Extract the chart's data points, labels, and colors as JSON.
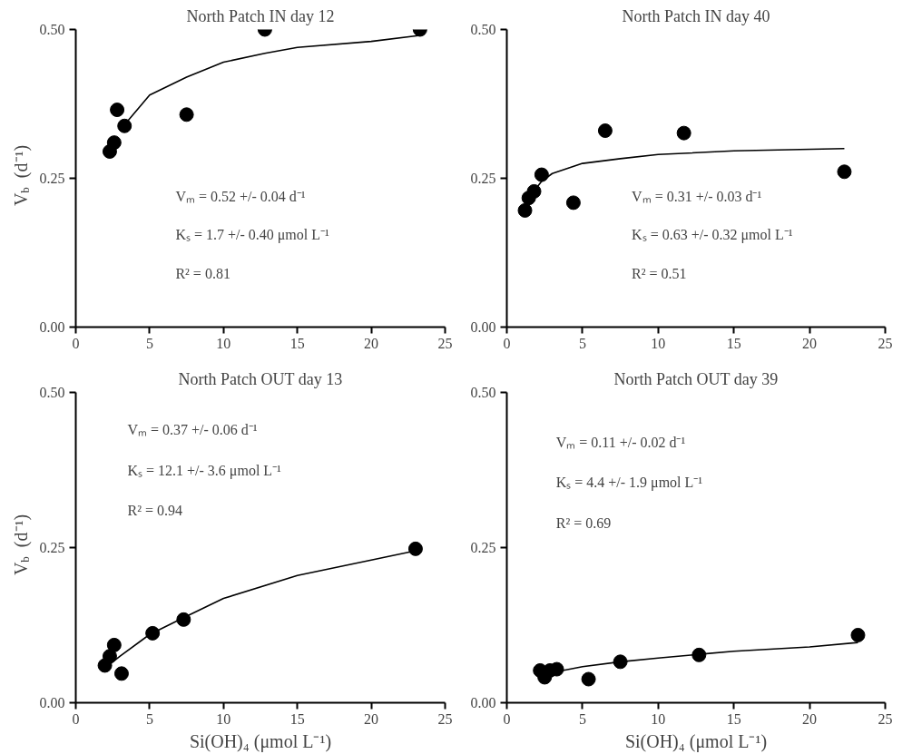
{
  "chart_data": [
    {
      "type": "scatter",
      "title": "North Patch IN day 12",
      "ylabel": "V$_{b}$ (d⁻¹)",
      "xlim": [
        0,
        25
      ],
      "ylim": [
        0,
        0.5
      ],
      "xticks": [
        0,
        5,
        10,
        15,
        20,
        25
      ],
      "yticks": [
        {
          "value": 0,
          "label": "0.00"
        },
        {
          "value": 0.25,
          "label": "0.25"
        },
        {
          "value": 0.5,
          "label": "0.50"
        }
      ],
      "grid": false,
      "annotations": [
        "Vₘ = 0.52 +/- 0.04  d⁻¹",
        "Kₛ = 1.7 +/- 0.40 μmol L⁻¹",
        "R² = 0.81"
      ],
      "series": [
        {
          "marker": "circle",
          "color": "#000000",
          "x": [
            2.3,
            2.6,
            2.8,
            3.3,
            7.5,
            12.8,
            23.3
          ],
          "values": [
            0.295,
            0.31,
            0.365,
            0.338,
            0.357,
            0.5,
            0.5
          ]
        },
        {
          "type": "line",
          "marker": "none",
          "color": "#000000",
          "x": [
            3.3,
            5,
            7.5,
            10,
            12.8,
            15,
            20,
            23.3
          ],
          "values": [
            0.34,
            0.39,
            0.42,
            0.445,
            0.46,
            0.47,
            0.48,
            0.49
          ]
        }
      ]
    },
    {
      "type": "scatter",
      "title": "North Patch IN day 40",
      "xlim": [
        0,
        25
      ],
      "ylim": [
        0,
        0.5
      ],
      "xticks": [
        0,
        5,
        10,
        15,
        20,
        25
      ],
      "yticks": [
        {
          "value": 0,
          "label": "0.00"
        },
        {
          "value": 0.25,
          "label": "0.25"
        },
        {
          "value": 0.5,
          "label": "0.50"
        }
      ],
      "grid": false,
      "annotations": [
        "Vₘ = 0.31 +/- 0.03 d⁻¹",
        "Kₛ = 0.63 +/- 0.32 μmol L⁻¹",
        "R² = 0.51"
      ],
      "series": [
        {
          "marker": "circle",
          "color": "#000000",
          "x": [
            1.2,
            1.45,
            1.8,
            2.3,
            4.4,
            6.5,
            11.7,
            22.3
          ],
          "values": [
            0.196,
            0.217,
            0.228,
            0.256,
            0.209,
            0.33,
            0.326,
            0.261
          ]
        },
        {
          "type": "line",
          "marker": "none",
          "color": "#000000",
          "x": [
            2.0,
            2.3,
            3,
            5,
            7.5,
            10,
            15,
            22.3
          ],
          "values": [
            0.235,
            0.245,
            0.258,
            0.275,
            0.283,
            0.29,
            0.296,
            0.3
          ]
        }
      ]
    },
    {
      "type": "scatter",
      "title": "North Patch OUT day 13",
      "ylabel": "V$_{b}$ (d⁻¹)",
      "xlabel": "Si(OH)₄ (μmol L⁻¹)",
      "xlim": [
        0,
        25
      ],
      "ylim": [
        0,
        0.5
      ],
      "xticks": [
        0,
        5,
        10,
        15,
        20,
        25
      ],
      "yticks": [
        {
          "value": 0,
          "label": "0.00"
        },
        {
          "value": 0.25,
          "label": "0.25"
        },
        {
          "value": 0.5,
          "label": "0.50"
        }
      ],
      "grid": false,
      "annotations": [
        "Vₘ = 0.37 +/- 0.06 d⁻¹",
        "Kₛ = 12.1 +/- 3.6 μmol L⁻¹",
        "R² = 0.94"
      ],
      "series": [
        {
          "marker": "circle",
          "color": "#000000",
          "x": [
            1.97,
            2.3,
            2.6,
            3.1,
            5.2,
            7.3,
            23.0
          ],
          "values": [
            0.06,
            0.075,
            0.093,
            0.047,
            0.112,
            0.134,
            0.248
          ]
        },
        {
          "type": "line",
          "marker": "none",
          "color": "#000000",
          "x": [
            2.3,
            3,
            5,
            7.3,
            10,
            15,
            20,
            23.0
          ],
          "values": [
            0.062,
            0.075,
            0.11,
            0.137,
            0.168,
            0.205,
            0.23,
            0.245
          ]
        }
      ]
    },
    {
      "type": "scatter",
      "title": "North Patch OUT day 39",
      "xlabel": "Si(OH)₄ (μmol L⁻¹)",
      "xlim": [
        0,
        25
      ],
      "ylim": [
        0,
        0.5
      ],
      "xticks": [
        0,
        5,
        10,
        15,
        20,
        25
      ],
      "yticks": [
        {
          "value": 0,
          "label": "0.00"
        },
        {
          "value": 0.25,
          "label": "0.25"
        },
        {
          "value": 0.5,
          "label": "0.50"
        }
      ],
      "grid": false,
      "annotations": [
        "Vₘ = 0.11 +/- 0.02 d⁻¹",
        "Kₛ = 4.4 +/- 1.9 μmol L⁻¹",
        "R² = 0.69"
      ],
      "series": [
        {
          "marker": "circle",
          "color": "#000000",
          "x": [
            2.2,
            2.5,
            2.85,
            3.3,
            5.4,
            7.5,
            12.7,
            23.2
          ],
          "values": [
            0.052,
            0.041,
            0.052,
            0.054,
            0.038,
            0.066,
            0.077,
            0.109
          ]
        },
        {
          "type": "line",
          "marker": "none",
          "color": "#000000",
          "x": [
            3.3,
            5,
            7.5,
            10,
            12.7,
            15,
            20,
            23.2
          ],
          "values": [
            0.05,
            0.058,
            0.066,
            0.072,
            0.078,
            0.083,
            0.09,
            0.097
          ]
        }
      ]
    }
  ]
}
